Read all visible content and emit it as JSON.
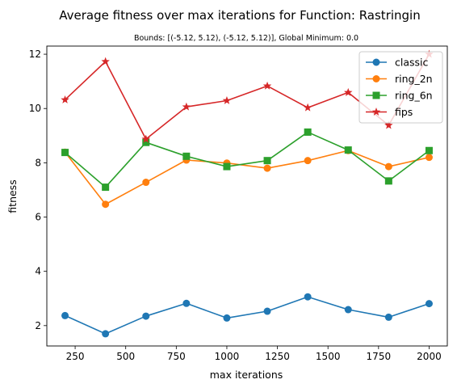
{
  "chart_data": {
    "type": "line",
    "title": "Average fitness over max iterations for Function: Rastringin",
    "subtitle": "Bounds: [(-5.12, 5.12), (-5.12, 5.12)], Global Minimum: 0.0",
    "xlabel": "max iterations",
    "ylabel": "fitness",
    "xlim": [
      110,
      2090
    ],
    "ylim": [
      1.25,
      12.3
    ],
    "x_ticks": [
      250,
      500,
      750,
      1000,
      1250,
      1500,
      1750,
      2000
    ],
    "y_ticks": [
      2,
      4,
      6,
      8,
      10,
      12
    ],
    "grid": false,
    "legend_position": "top-right",
    "x": [
      200,
      400,
      600,
      800,
      1000,
      1200,
      1400,
      1600,
      1800,
      2000
    ],
    "series": [
      {
        "name": "classic",
        "color": "#1f77b4",
        "marker": "circle",
        "values": [
          2.37,
          1.7,
          2.35,
          2.82,
          2.28,
          2.53,
          3.06,
          2.59,
          2.31,
          2.81
        ]
      },
      {
        "name": "ring_2n",
        "color": "#ff7f0e",
        "marker": "circle",
        "values": [
          8.39,
          6.47,
          7.28,
          8.1,
          7.99,
          7.8,
          8.08,
          8.45,
          7.86,
          8.2
        ]
      },
      {
        "name": "ring_6n",
        "color": "#2ca02c",
        "marker": "square",
        "values": [
          8.38,
          7.1,
          8.75,
          8.24,
          7.86,
          8.08,
          9.13,
          8.47,
          7.33,
          8.45
        ]
      },
      {
        "name": "fips",
        "color": "#d62728",
        "marker": "star",
        "values": [
          10.32,
          11.73,
          8.87,
          10.06,
          10.29,
          10.83,
          10.03,
          10.59,
          9.38,
          12.0
        ]
      }
    ]
  }
}
